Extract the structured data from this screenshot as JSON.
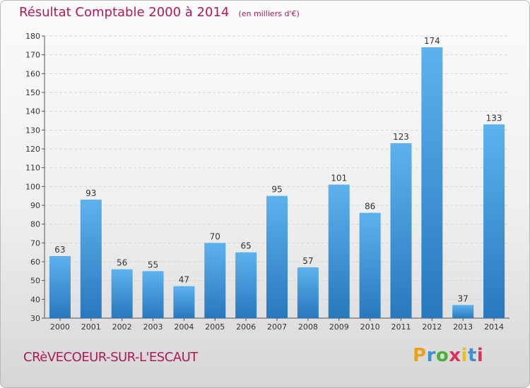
{
  "chart_data": {
    "type": "bar",
    "title": "Résultat Comptable 2000 à 2014",
    "unit_label": "(en milliers d'€)",
    "categories": [
      "2000",
      "2001",
      "2002",
      "2003",
      "2004",
      "2005",
      "2006",
      "2007",
      "2008",
      "2009",
      "2010",
      "2011",
      "2012",
      "2013",
      "2014"
    ],
    "values": [
      63,
      93,
      56,
      55,
      47,
      70,
      65,
      95,
      57,
      101,
      86,
      123,
      174,
      37,
      133
    ],
    "ylim": [
      30,
      180
    ],
    "yticks": [
      30,
      40,
      50,
      60,
      70,
      80,
      90,
      100,
      110,
      120,
      130,
      140,
      150,
      160,
      170,
      180
    ],
    "grid": true,
    "bar_color": "#4a9fdc",
    "text_color": "#b0185a"
  },
  "commune_name": "CRèVECOEUR-SUR-L'ESCAUT",
  "brand": {
    "letters": [
      "P",
      "r",
      "o",
      "x",
      "i",
      "t",
      "i"
    ],
    "colors": [
      "#e8a21a",
      "#3f8fd0",
      "#4caf3a",
      "#d8335a",
      "#e8c21a",
      "#3f8fd0",
      "#d8335a"
    ]
  }
}
